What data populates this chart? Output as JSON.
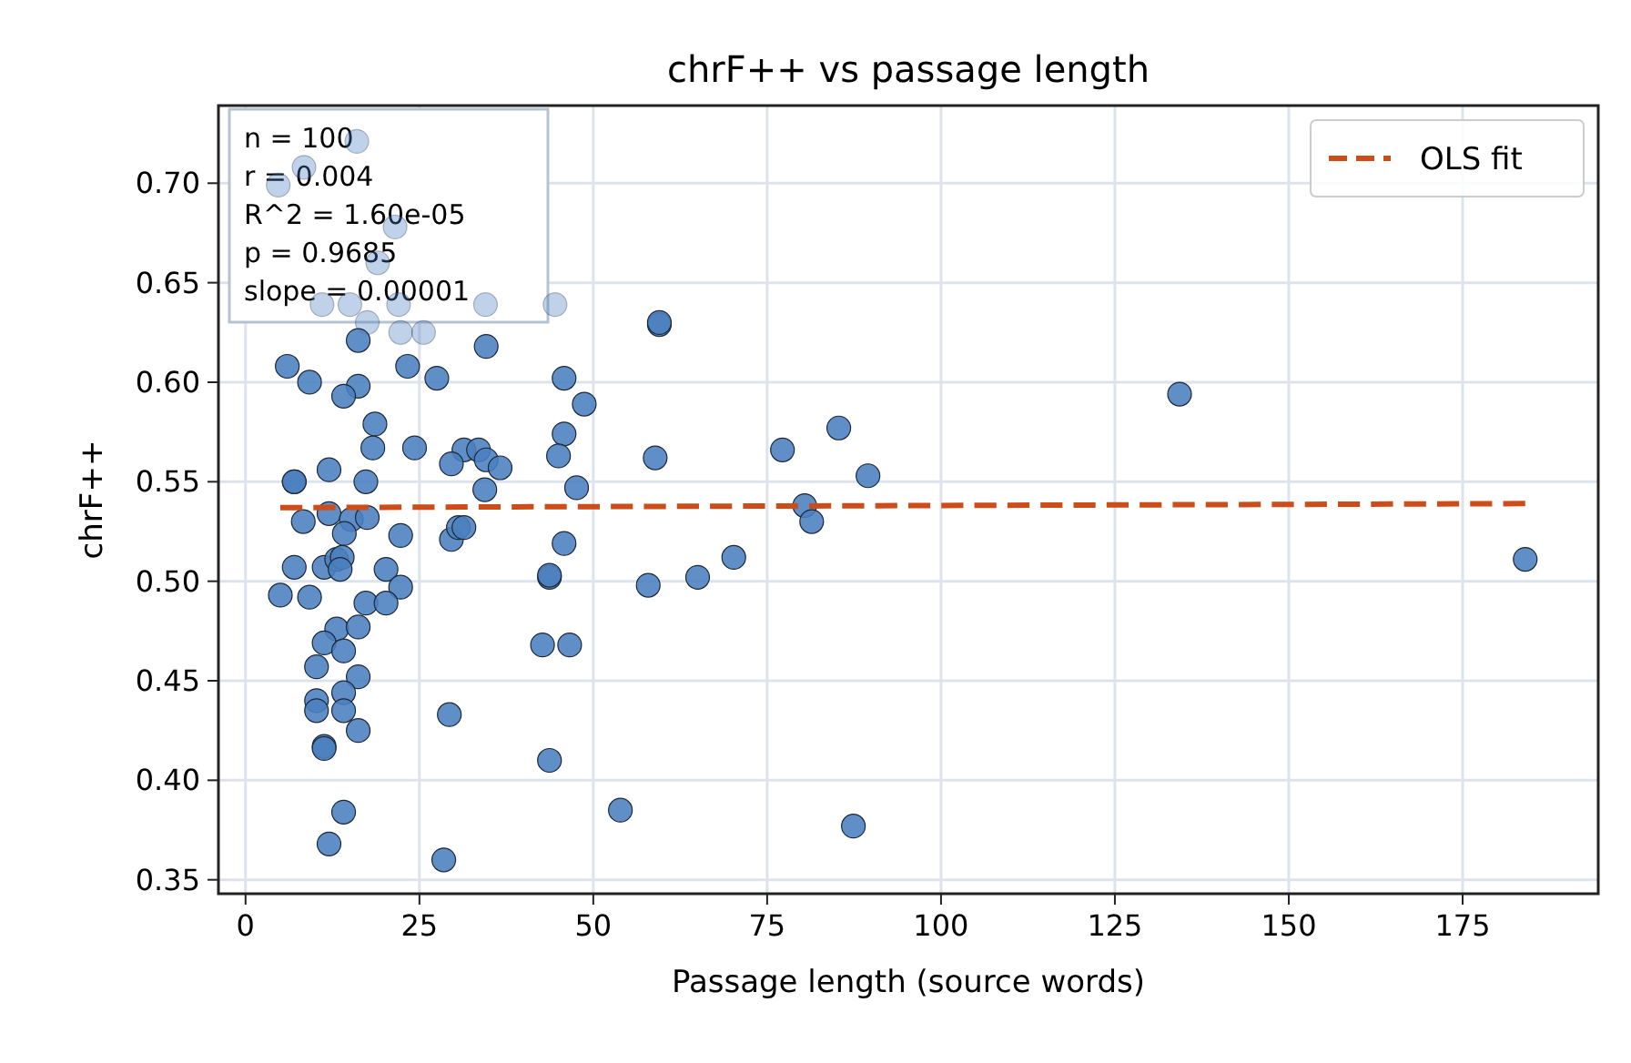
{
  "chart_data": {
    "type": "scatter",
    "title": "chrF++ vs passage length",
    "xlabel": "Passage length (source words)",
    "ylabel": "chrF++",
    "xlim": [
      -3.9,
      194.5
    ],
    "xticks": [
      0,
      25,
      50,
      75,
      100,
      125,
      150,
      175
    ],
    "ylim": [
      0.343,
      0.739
    ],
    "yticks": [
      {
        "value": 0.35,
        "label": "0.35"
      },
      {
        "value": 0.4,
        "label": "0.40"
      },
      {
        "value": 0.45,
        "label": "0.45"
      },
      {
        "value": 0.5,
        "label": "0.50"
      },
      {
        "value": 0.55,
        "label": "0.55"
      },
      {
        "value": 0.6,
        "label": "0.60"
      },
      {
        "value": 0.65,
        "label": "0.65"
      },
      {
        "value": 0.7,
        "label": "0.70"
      }
    ],
    "grid": true,
    "legend": "top right",
    "annotations": [
      "n = 100",
      "r = 0.004",
      "R^2 = 1.60e-05",
      "p = 0.9685",
      "slope = 0.00001"
    ],
    "series": [
      {
        "color": "#4a7fbf",
        "marker": "circle",
        "x": [
          4.7,
          8.4,
          16,
          21.5,
          19,
          11,
          15,
          17.5,
          22,
          34.5,
          44.5,
          59.5,
          59.5,
          16.2,
          22.3,
          25.6,
          34.6,
          6,
          9.2,
          16.2,
          14.1,
          23.3,
          27.5,
          45.8,
          48.7,
          18.6,
          45.8,
          18.3,
          24.3,
          31.4,
          33.5,
          34.6,
          36.6,
          29.6,
          45,
          58.9,
          12,
          7,
          7,
          17.3,
          34.4,
          47.6,
          12,
          8.3,
          15.2,
          17.5,
          14.2,
          22.3,
          29.6,
          30.6,
          31.4,
          45.8,
          7,
          11.3,
          13.1,
          13.9,
          13.6,
          20.2,
          22.3,
          5,
          9.2,
          17.3,
          20.2,
          43.7,
          43.7,
          57.9,
          13.1,
          16.2,
          11.3,
          14.1,
          42.7,
          46.6,
          10.2,
          16.2,
          10.2,
          10.2,
          14.1,
          14.1,
          16.2,
          29.3,
          11.3,
          11.3,
          43.7,
          14.1,
          53.9,
          12,
          28.5,
          65,
          70.2,
          77.2,
          85.3,
          89.5,
          80.4,
          81.4,
          87.4,
          134.3,
          184
        ],
        "values": [
          0.699,
          0.708,
          0.721,
          0.678,
          0.66,
          0.639,
          0.639,
          0.63,
          0.639,
          0.639,
          0.639,
          0.629,
          0.63,
          0.621,
          0.625,
          0.625,
          0.618,
          0.608,
          0.6,
          0.598,
          0.593,
          0.608,
          0.602,
          0.602,
          0.589,
          0.579,
          0.574,
          0.567,
          0.567,
          0.566,
          0.566,
          0.561,
          0.557,
          0.559,
          0.563,
          0.562,
          0.556,
          0.55,
          0.55,
          0.55,
          0.546,
          0.547,
          0.534,
          0.53,
          0.531,
          0.532,
          0.524,
          0.523,
          0.521,
          0.527,
          0.527,
          0.519,
          0.507,
          0.507,
          0.511,
          0.512,
          0.506,
          0.506,
          0.497,
          0.493,
          0.492,
          0.489,
          0.489,
          0.502,
          0.503,
          0.498,
          0.476,
          0.477,
          0.469,
          0.465,
          0.468,
          0.468,
          0.457,
          0.452,
          0.44,
          0.435,
          0.444,
          0.435,
          0.425,
          0.433,
          0.417,
          0.416,
          0.41,
          0.384,
          0.385,
          0.368,
          0.36,
          0.502,
          0.512,
          0.566,
          0.577,
          0.553,
          0.538,
          0.53,
          0.377,
          0.594,
          0.511
        ]
      },
      {
        "type": "line",
        "name": "OLS fit",
        "color": "#cc4c1a",
        "marker": "none",
        "line_style": "dashed",
        "x": [
          5,
          184
        ],
        "values": [
          0.537,
          0.539
        ]
      }
    ]
  }
}
